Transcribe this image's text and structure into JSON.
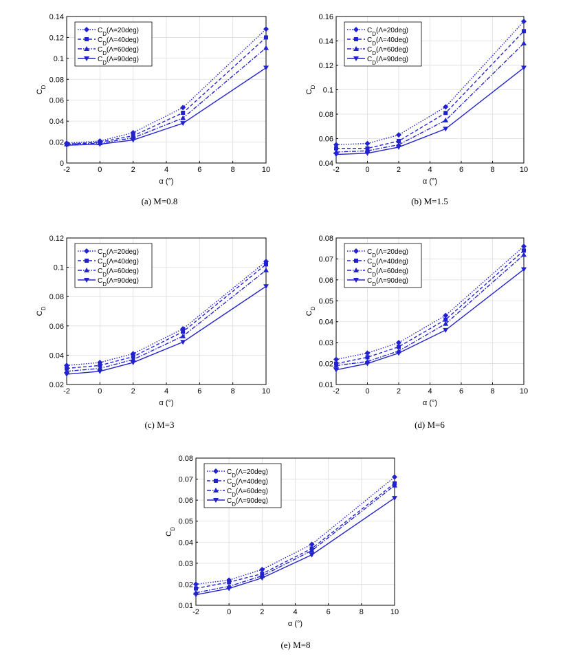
{
  "chart_data": [
    {
      "type": "line",
      "caption": "(a) M=0.8",
      "xlabel": "α (°)",
      "ylabel": "CD",
      "x": [
        -2,
        0,
        2,
        5,
        10
      ],
      "xlim": [
        -2,
        10
      ],
      "xticks": [
        -2,
        0,
        2,
        4,
        6,
        8,
        10
      ],
      "ylim": [
        0,
        0.14
      ],
      "yticks": [
        0,
        0.02,
        0.04,
        0.06,
        0.08,
        0.1,
        0.12,
        0.14
      ],
      "grid": true,
      "legend": "upper-left",
      "series": [
        {
          "name": "CD(Λ=20deg)",
          "color": "#2222cc",
          "dash": "dotted",
          "marker": "diamond",
          "values": [
            0.019,
            0.021,
            0.029,
            0.053,
            0.128
          ]
        },
        {
          "name": "CD(Λ=40deg)",
          "color": "#2222cc",
          "dash": "dashed",
          "marker": "square",
          "values": [
            0.018,
            0.02,
            0.026,
            0.048,
            0.12
          ]
        },
        {
          "name": "CD(Λ=60deg)",
          "color": "#2222cc",
          "dash": "dashdot",
          "marker": "triangle-up",
          "values": [
            0.018,
            0.019,
            0.024,
            0.043,
            0.11
          ]
        },
        {
          "name": "CD(Λ=90deg)",
          "color": "#2222cc",
          "dash": "solid",
          "marker": "triangle-down",
          "values": [
            0.017,
            0.018,
            0.022,
            0.038,
            0.091
          ]
        }
      ]
    },
    {
      "type": "line",
      "caption": "(b) M=1.5",
      "xlabel": "α (°)",
      "ylabel": "CD",
      "x": [
        -2,
        0,
        2,
        5,
        10
      ],
      "xlim": [
        -2,
        10
      ],
      "xticks": [
        -2,
        0,
        2,
        4,
        6,
        8,
        10
      ],
      "ylim": [
        0.04,
        0.16
      ],
      "yticks": [
        0.04,
        0.06,
        0.08,
        0.1,
        0.12,
        0.14,
        0.16
      ],
      "grid": true,
      "legend": "upper-left",
      "series": [
        {
          "name": "CD(Λ=20deg)",
          "color": "#2222cc",
          "dash": "dotted",
          "marker": "diamond",
          "values": [
            0.055,
            0.056,
            0.063,
            0.086,
            0.156
          ]
        },
        {
          "name": "CD(Λ=40deg)",
          "color": "#2222cc",
          "dash": "dashed",
          "marker": "square",
          "values": [
            0.052,
            0.052,
            0.058,
            0.081,
            0.148
          ]
        },
        {
          "name": "CD(Λ=60deg)",
          "color": "#2222cc",
          "dash": "dashdot",
          "marker": "triangle-up",
          "values": [
            0.049,
            0.05,
            0.055,
            0.075,
            0.138
          ]
        },
        {
          "name": "CD(Λ=90deg)",
          "color": "#2222cc",
          "dash": "solid",
          "marker": "triangle-down",
          "values": [
            0.047,
            0.048,
            0.053,
            0.068,
            0.118
          ]
        }
      ]
    },
    {
      "type": "line",
      "caption": "(c) M=3",
      "xlabel": "α (°)",
      "ylabel": "CD",
      "x": [
        -2,
        0,
        2,
        5,
        10
      ],
      "xlim": [
        -2,
        10
      ],
      "xticks": [
        -2,
        0,
        2,
        4,
        6,
        8,
        10
      ],
      "ylim": [
        0.02,
        0.12
      ],
      "yticks": [
        0.02,
        0.04,
        0.06,
        0.08,
        0.1,
        0.12
      ],
      "grid": true,
      "legend": "upper-left",
      "series": [
        {
          "name": "CD(Λ=20deg)",
          "color": "#2222cc",
          "dash": "dotted",
          "marker": "diamond",
          "values": [
            0.033,
            0.035,
            0.041,
            0.058,
            0.104
          ]
        },
        {
          "name": "CD(Λ=40deg)",
          "color": "#2222cc",
          "dash": "dashed",
          "marker": "square",
          "values": [
            0.031,
            0.033,
            0.039,
            0.056,
            0.102
          ]
        },
        {
          "name": "CD(Λ=60deg)",
          "color": "#2222cc",
          "dash": "dashdot",
          "marker": "triangle-up",
          "values": [
            0.029,
            0.031,
            0.037,
            0.053,
            0.098
          ]
        },
        {
          "name": "CD(Λ=90deg)",
          "color": "#2222cc",
          "dash": "solid",
          "marker": "triangle-down",
          "values": [
            0.027,
            0.029,
            0.035,
            0.049,
            0.087
          ]
        }
      ]
    },
    {
      "type": "line",
      "caption": "(d) M=6",
      "xlabel": "α (°)",
      "ylabel": "CD",
      "x": [
        -2,
        0,
        2,
        5,
        10
      ],
      "xlim": [
        -2,
        10
      ],
      "xticks": [
        -2,
        0,
        2,
        4,
        6,
        8,
        10
      ],
      "ylim": [
        0.01,
        0.08
      ],
      "yticks": [
        0.01,
        0.02,
        0.03,
        0.04,
        0.05,
        0.06,
        0.07,
        0.08
      ],
      "grid": true,
      "legend": "upper-left",
      "series": [
        {
          "name": "CD(Λ=20deg)",
          "color": "#2222cc",
          "dash": "dotted",
          "marker": "diamond",
          "values": [
            0.022,
            0.025,
            0.03,
            0.043,
            0.076
          ]
        },
        {
          "name": "CD(Λ=40deg)",
          "color": "#2222cc",
          "dash": "dashed",
          "marker": "square",
          "values": [
            0.02,
            0.023,
            0.028,
            0.041,
            0.074
          ]
        },
        {
          "name": "CD(Λ=60deg)",
          "color": "#2222cc",
          "dash": "dashdot",
          "marker": "triangle-up",
          "values": [
            0.019,
            0.021,
            0.026,
            0.039,
            0.072
          ]
        },
        {
          "name": "CD(Λ=90deg)",
          "color": "#2222cc",
          "dash": "solid",
          "marker": "triangle-down",
          "values": [
            0.017,
            0.02,
            0.025,
            0.036,
            0.065
          ]
        }
      ]
    },
    {
      "type": "line",
      "caption": "(e) M=8",
      "xlabel": "α (°)",
      "ylabel": "CD",
      "x": [
        -2,
        0,
        2,
        5,
        10
      ],
      "xlim": [
        -2,
        10
      ],
      "xticks": [
        -2,
        0,
        2,
        4,
        6,
        8,
        10
      ],
      "ylim": [
        0.01,
        0.08
      ],
      "yticks": [
        0.01,
        0.02,
        0.03,
        0.04,
        0.05,
        0.06,
        0.07,
        0.08
      ],
      "grid": true,
      "legend": "upper-left",
      "series": [
        {
          "name": "CD(Λ=20deg)",
          "color": "#2222cc",
          "dash": "dotted",
          "marker": "diamond",
          "values": [
            0.02,
            0.022,
            0.027,
            0.039,
            0.071
          ]
        },
        {
          "name": "CD(Λ=40deg)",
          "color": "#2222cc",
          "dash": "dashed",
          "marker": "square",
          "values": [
            0.018,
            0.021,
            0.025,
            0.037,
            0.068
          ]
        },
        {
          "name": "CD(Λ=60deg)",
          "color": "#2222cc",
          "dash": "dashdot",
          "marker": "triangle-up",
          "values": [
            0.016,
            0.019,
            0.024,
            0.036,
            0.067
          ]
        },
        {
          "name": "CD(Λ=90deg)",
          "color": "#2222cc",
          "dash": "solid",
          "marker": "triangle-down",
          "values": [
            0.015,
            0.018,
            0.023,
            0.034,
            0.061
          ]
        }
      ]
    }
  ]
}
